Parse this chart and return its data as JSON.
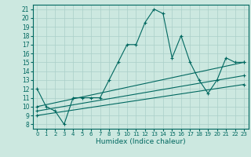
{
  "xlabel": "Humidex (Indice chaleur)",
  "bg_color": "#cce8e0",
  "grid_color": "#aacfc8",
  "line_color": "#006860",
  "xlim": [
    -0.5,
    23.5
  ],
  "ylim": [
    7.5,
    21.5
  ],
  "xticks": [
    0,
    1,
    2,
    3,
    4,
    5,
    6,
    7,
    8,
    9,
    10,
    11,
    12,
    13,
    14,
    15,
    16,
    17,
    18,
    19,
    20,
    21,
    22,
    23
  ],
  "yticks": [
    8,
    9,
    10,
    11,
    12,
    13,
    14,
    15,
    16,
    17,
    18,
    19,
    20,
    21
  ],
  "series": [
    {
      "x": [
        0,
        1,
        2,
        3,
        4,
        5,
        6,
        7,
        8,
        9,
        10,
        11,
        12,
        13,
        14,
        15,
        16,
        17,
        18,
        19,
        20,
        21,
        22,
        23
      ],
      "y": [
        12,
        10,
        9.5,
        8.0,
        11.0,
        11.0,
        11.0,
        11.0,
        13.0,
        15.0,
        17.0,
        17.0,
        19.5,
        21.0,
        20.5,
        15.5,
        18.0,
        15.0,
        13.0,
        11.5,
        13.0,
        15.5,
        15.0,
        15.0
      ]
    },
    {
      "x": [
        0,
        23
      ],
      "y": [
        10.0,
        15.0
      ]
    },
    {
      "x": [
        0,
        23
      ],
      "y": [
        9.5,
        13.5
      ]
    },
    {
      "x": [
        0,
        23
      ],
      "y": [
        9.0,
        12.5
      ]
    }
  ]
}
